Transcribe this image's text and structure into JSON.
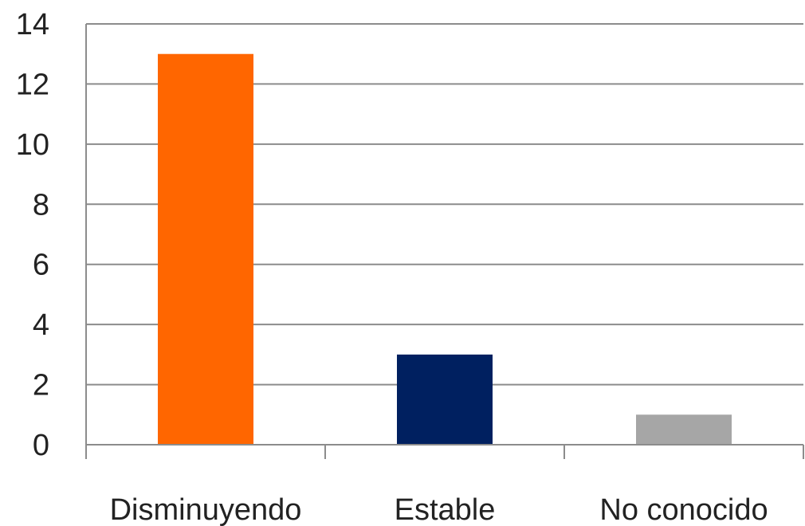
{
  "chart_data": {
    "type": "bar",
    "categories": [
      "Disminuyendo",
      "Estable",
      "No conocido"
    ],
    "values": [
      13,
      3,
      1
    ],
    "colors": [
      "#ff6600",
      "#002060",
      "#a6a6a6"
    ],
    "ylim": [
      0,
      14
    ],
    "yticks": [
      0,
      2,
      4,
      6,
      8,
      10,
      12,
      14
    ],
    "grid": true,
    "legend": "none"
  }
}
